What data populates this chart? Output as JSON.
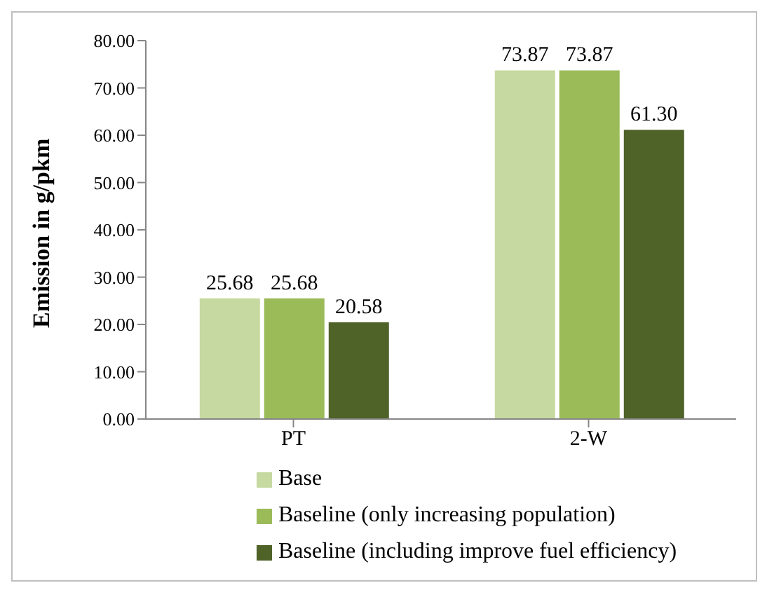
{
  "chart_data": {
    "type": "bar",
    "ylabel": "Emission in g/pkm",
    "categories": [
      "PT",
      "2-W"
    ],
    "series": [
      {
        "name": "Base",
        "color": "#c6d9a0",
        "values": [
          25.68,
          73.87
        ],
        "value_labels": [
          "25.68",
          "73.87"
        ]
      },
      {
        "name": "Baseline (only increasing population)",
        "color": "#9bbb59",
        "values": [
          25.68,
          73.87
        ],
        "value_labels": [
          "25.68",
          "73.87"
        ]
      },
      {
        "name": "Baseline (including improve fuel efficiency)",
        "color": "#4f6228",
        "values": [
          20.58,
          61.3
        ],
        "value_labels": [
          "20.58",
          "61.30"
        ]
      }
    ],
    "ylim": [
      0,
      80
    ],
    "yticks": [
      {
        "value": 0,
        "label": "0.00"
      },
      {
        "value": 10,
        "label": "10.00"
      },
      {
        "value": 20,
        "label": "20.00"
      },
      {
        "value": 30,
        "label": "30.00"
      },
      {
        "value": 40,
        "label": "40.00"
      },
      {
        "value": 50,
        "label": "50.00"
      },
      {
        "value": 60,
        "label": "60.00"
      },
      {
        "value": 70,
        "label": "70.00"
      },
      {
        "value": 80,
        "label": "80.00"
      }
    ],
    "legend": "bottom"
  }
}
